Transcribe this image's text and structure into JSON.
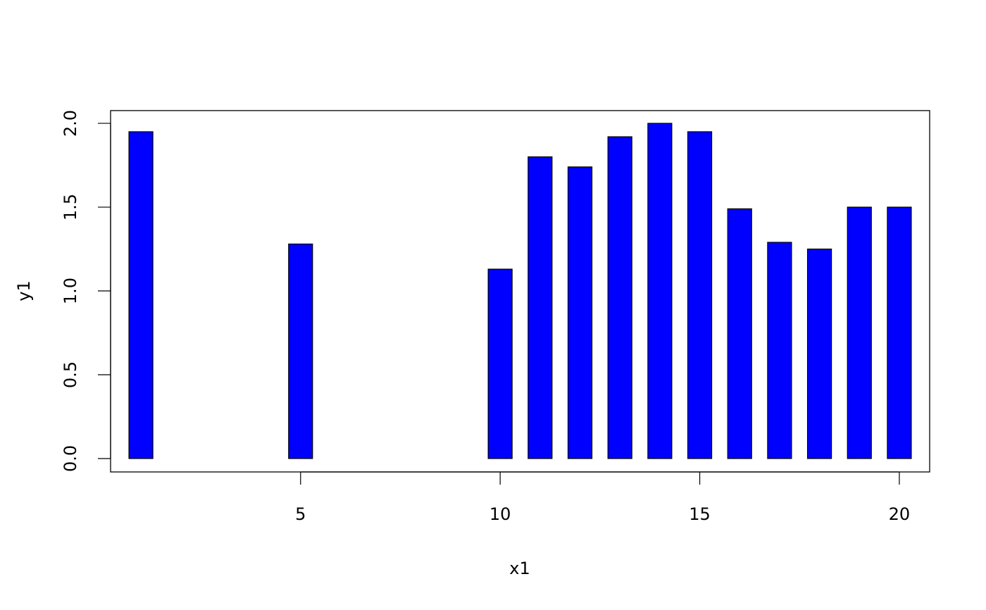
{
  "chart_data": {
    "type": "bar",
    "title": "",
    "xlabel": "x1",
    "ylabel": "y1",
    "x": [
      1,
      5,
      10,
      11,
      12,
      13,
      14,
      15,
      16,
      17,
      18,
      19,
      20
    ],
    "values": [
      1.95,
      1.28,
      1.13,
      1.8,
      1.74,
      1.92,
      2.0,
      1.95,
      1.49,
      1.29,
      1.25,
      1.5,
      1.5
    ],
    "bar_width": 0.6,
    "xlim": [
      0.24,
      20.76
    ],
    "ylim": [
      -0.08,
      2.076
    ],
    "xticks": [
      5,
      10,
      15,
      20
    ],
    "xtick_labels": [
      "5",
      "10",
      "15",
      "20"
    ],
    "yticks": [
      0,
      0.5,
      1,
      1.5,
      2
    ],
    "ytick_labels": [
      "0.0",
      "0.5",
      "1.0",
      "1.5",
      "2.0"
    ],
    "bar_color": "#0000ff",
    "bar_border": "#000000",
    "grid": false
  }
}
